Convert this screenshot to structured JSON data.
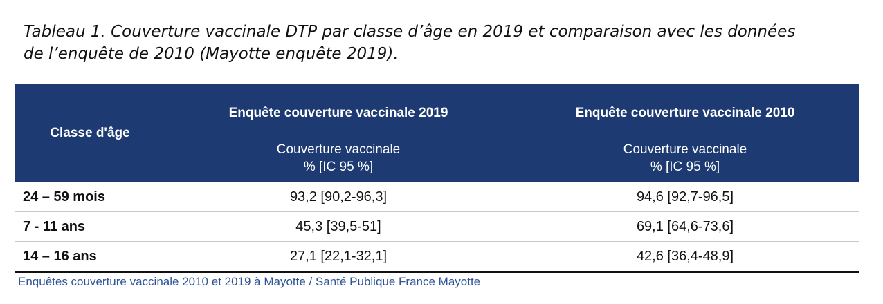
{
  "caption": {
    "line1": "Tableau 1. Couverture vaccinale DTP par classe d’âge en 2019 et comparaison avec les données",
    "line2": "de l’enquête de 2010 (Mayotte enquête 2019)."
  },
  "table": {
    "header": {
      "age_label": "Classe d'âge",
      "survey_2019": "Enquête couverture vaccinale 2019",
      "survey_2010": "Enquête couverture vaccinale 2010",
      "sub_line1": "Couverture vaccinale",
      "sub_line2": "% [IC 95 %]"
    },
    "rows": [
      {
        "age": "24 – 59 mois",
        "v2019": "93,2 [90,2-96,3]",
        "v2010": "94,6 [92,7-96,5]"
      },
      {
        "age": "7 - 11 ans",
        "v2019": "45,3 [39,5-51]",
        "v2010": "69,1 [64,6-73,6]"
      },
      {
        "age": "14 – 16 ans",
        "v2019": "27,1 [22,1-32,1]",
        "v2010": "42,6 [36,4-48,9]"
      }
    ]
  },
  "source": "Enquêtes couverture vaccinale 2010 et 2019 à Mayotte / Santé Publique France Mayotte",
  "colors": {
    "header_bg": "#1d3a72",
    "header_text": "#ffffff",
    "source_text": "#2f5597"
  }
}
